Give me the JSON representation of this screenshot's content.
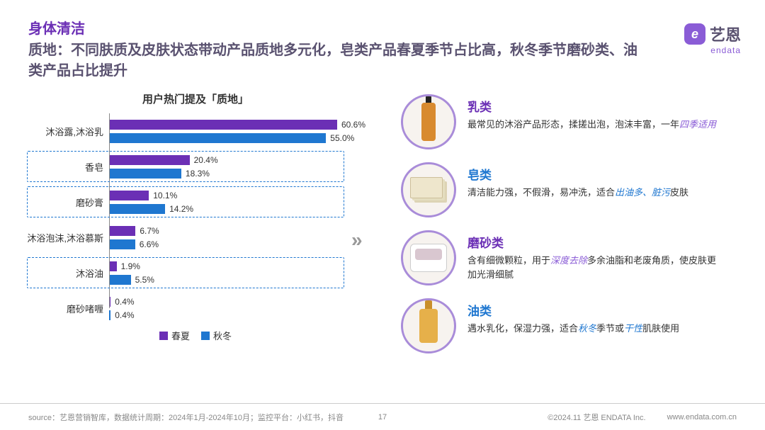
{
  "header": {
    "badge": "身体清洁",
    "title": "质地：不同肤质及皮肤状态带动产品质地多元化，皂类产品春夏季节占比高，秋冬季节磨砂类、油类产品占比提升",
    "logo_text": "艺恩",
    "logo_sub": "endata"
  },
  "chart": {
    "type": "grouped-horizontal-bar",
    "title": "用户热门提及「质地」",
    "max_pct": 65,
    "series": [
      {
        "name": "春夏",
        "color": "#6b2fb5"
      },
      {
        "name": "秋冬",
        "color": "#1f77d0"
      }
    ],
    "rows": [
      {
        "label": "沐浴露,沐浴乳",
        "vals": [
          60.6,
          55.0
        ],
        "dashed": false
      },
      {
        "label": "香皂",
        "vals": [
          20.4,
          18.3
        ],
        "dashed": true
      },
      {
        "label": "磨砂膏",
        "vals": [
          10.1,
          14.2
        ],
        "dashed": true
      },
      {
        "label": "沐浴泡沫,沐浴慕斯",
        "vals": [
          6.7,
          6.6
        ],
        "dashed": false
      },
      {
        "label": "沐浴油",
        "vals": [
          1.9,
          5.5
        ],
        "dashed": true
      },
      {
        "label": "磨砂啫喱",
        "vals": [
          0.4,
          0.4
        ],
        "dashed": false
      }
    ],
    "legend_labels": [
      "春夏",
      "秋冬"
    ],
    "background_color": "#ffffff",
    "axis_color": "#888888",
    "dashed_color": "#1f77d0"
  },
  "categories": [
    {
      "name": "乳类",
      "color": "#6b2fb5",
      "icon": "p-bottle",
      "desc_parts": [
        "最常见的沐浴产品形态，揉搓出泡，泡沫丰富，一年",
        {
          "hl": "四季适用",
          "c": "#8a5cd6"
        }
      ]
    },
    {
      "name": "皂类",
      "color": "#1f77d0",
      "icon": "p-soap",
      "desc_parts": [
        "清洁能力强，不假滑，易冲洗，适合",
        {
          "hl": "出油多、脏污",
          "c": "#1f77d0"
        },
        "皮肤"
      ]
    },
    {
      "name": "磨砂类",
      "color": "#6b2fb5",
      "icon": "p-jar",
      "desc_parts": [
        "含有细微颗粒，用于",
        {
          "hl": "深度去除",
          "c": "#8a5cd6"
        },
        "多余油脂和老废角质，使皮肤更加光滑细腻"
      ]
    },
    {
      "name": "油类",
      "color": "#1f77d0",
      "icon": "p-pump",
      "desc_parts": [
        "遇水乳化，保湿力强，适合",
        {
          "hl": "秋冬",
          "c": "#1f77d0"
        },
        "季节或",
        {
          "hl": "干性",
          "c": "#1f77d0"
        },
        "肌肤使用"
      ]
    }
  ],
  "footer": {
    "source": "source：艺恩营销智库，数据统计周期：2024年1月-2024年10月；监控平台：小红书，抖音",
    "page": "17",
    "copyright": "©2024.11  艺恩  ENDATA Inc.",
    "url": "www.endata.com.cn"
  }
}
